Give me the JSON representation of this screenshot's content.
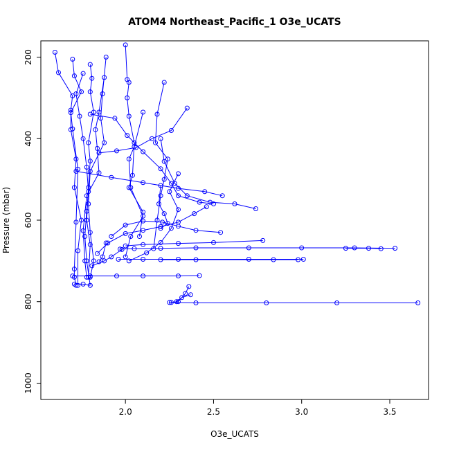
{
  "chart_data": {
    "type": "scatter",
    "title": "ATOM4 Northeast_Pacific_1 O3e_UCATS",
    "xlabel": "O3e_UCATS",
    "ylabel": "Pressure (mbar)",
    "xlim": [
      1.52,
      3.72
    ],
    "ylim": [
      1040,
      160
    ],
    "y_reversed": true,
    "x_ticks": [
      2.0,
      2.5,
      3.0,
      3.5
    ],
    "x_tick_labels": [
      "2.0",
      "2.5",
      "3.0",
      "3.5"
    ],
    "y_ticks": [
      200,
      400,
      600,
      800,
      1000
    ],
    "y_tick_labels": [
      "200",
      "400",
      "600",
      "800",
      "1000"
    ],
    "grid": false,
    "legend": "none",
    "colors": {
      "series": "#0000ff",
      "axes": "#000000"
    },
    "series": [
      {
        "points": [
          [
            1.6,
            188
          ],
          [
            1.62,
            238
          ],
          [
            1.7,
            295
          ],
          [
            1.69,
            330
          ],
          [
            1.69,
            378
          ],
          [
            1.72,
            450
          ],
          [
            1.71,
            520
          ],
          [
            1.75,
            600
          ],
          [
            1.73,
            675
          ],
          [
            1.73,
            760
          ]
        ]
      },
      {
        "points": [
          [
            1.7,
            205
          ],
          [
            1.71,
            246
          ],
          [
            1.75,
            285
          ],
          [
            1.69,
            336
          ],
          [
            1.7,
            376
          ],
          [
            1.73,
            475
          ],
          [
            1.72,
            605
          ],
          [
            1.71,
            720
          ],
          [
            1.71,
            740
          ],
          [
            1.72,
            760
          ]
        ]
      },
      {
        "points": [
          [
            1.76,
            240
          ],
          [
            1.72,
            290
          ],
          [
            1.74,
            345
          ],
          [
            1.76,
            400
          ],
          [
            1.78,
            470
          ],
          [
            1.79,
            530
          ],
          [
            1.78,
            578
          ],
          [
            1.77,
            640
          ],
          [
            1.78,
            700
          ],
          [
            1.8,
            760
          ]
        ]
      },
      {
        "points": [
          [
            1.8,
            218
          ],
          [
            1.81,
            252
          ],
          [
            1.8,
            285
          ],
          [
            1.82,
            335
          ],
          [
            1.79,
            410
          ],
          [
            1.8,
            455
          ],
          [
            1.79,
            520
          ],
          [
            1.78,
            600
          ],
          [
            1.8,
            660
          ],
          [
            1.79,
            740
          ]
        ]
      },
      {
        "points": [
          [
            1.88,
            250
          ],
          [
            1.85,
            335
          ],
          [
            1.83,
            378
          ],
          [
            1.84,
            424
          ],
          [
            1.85,
            484
          ],
          [
            1.78,
            540
          ],
          [
            1.76,
            626
          ],
          [
            1.77,
            700
          ],
          [
            1.78,
            740
          ]
        ]
      },
      {
        "points": [
          [
            1.89,
            200
          ],
          [
            1.87,
            290
          ],
          [
            1.86,
            350
          ],
          [
            1.88,
            410
          ],
          [
            1.8,
            480
          ],
          [
            1.79,
            560
          ],
          [
            1.8,
            630
          ],
          [
            1.82,
            700
          ],
          [
            1.8,
            740
          ]
        ]
      },
      {
        "points": [
          [
            2.0,
            170
          ],
          [
            2.01,
            255
          ],
          [
            2.02,
            262
          ],
          [
            2.01,
            300
          ],
          [
            2.02,
            345
          ],
          [
            2.05,
            410
          ],
          [
            2.04,
            490
          ],
          [
            2.02,
            520
          ],
          [
            2.1,
            580
          ],
          [
            2.08,
            640
          ]
        ]
      },
      {
        "points": [
          [
            2.22,
            262
          ],
          [
            2.18,
            340
          ],
          [
            2.17,
            410
          ],
          [
            2.24,
            450
          ],
          [
            2.22,
            500
          ],
          [
            2.2,
            540
          ],
          [
            2.18,
            600
          ],
          [
            2.16,
            670
          ]
        ]
      },
      {
        "points": [
          [
            2.35,
            325
          ],
          [
            2.26,
            380
          ],
          [
            2.15,
            400
          ],
          [
            2.06,
            422
          ],
          [
            1.95,
            430
          ],
          [
            1.85,
            435
          ]
        ]
      },
      {
        "points": [
          [
            2.1,
            335
          ],
          [
            2.05,
            420
          ],
          [
            2.02,
            450
          ],
          [
            2.03,
            520
          ],
          [
            2.1,
            590
          ],
          [
            2.03,
            640
          ],
          [
            2.0,
            690
          ]
        ]
      },
      {
        "points": [
          [
            1.8,
            340
          ],
          [
            1.94,
            350
          ],
          [
            2.01,
            392
          ],
          [
            2.1,
            432
          ],
          [
            2.2,
            474
          ],
          [
            2.26,
            510
          ],
          [
            2.3,
            540
          ],
          [
            2.42,
            556
          ],
          [
            2.5,
            560
          ]
        ]
      },
      {
        "points": [
          [
            2.74,
            572
          ],
          [
            2.62,
            560
          ],
          [
            2.48,
            556
          ],
          [
            2.35,
            540
          ],
          [
            2.28,
            510
          ],
          [
            2.22,
            456
          ],
          [
            2.2,
            400
          ]
        ]
      },
      {
        "points": [
          [
            1.72,
            480
          ],
          [
            1.92,
            495
          ],
          [
            2.1,
            508
          ],
          [
            2.3,
            522
          ],
          [
            2.45,
            530
          ],
          [
            2.55,
            540
          ]
        ]
      },
      {
        "points": [
          [
            2.46,
            567
          ],
          [
            2.39,
            584
          ],
          [
            2.3,
            605
          ],
          [
            2.2,
            616
          ],
          [
            2.1,
            625
          ],
          [
            2.0,
            633
          ],
          [
            1.9,
            656
          ],
          [
            1.84,
            682
          ]
        ]
      },
      {
        "points": [
          [
            2.54,
            630
          ],
          [
            2.4,
            625
          ],
          [
            2.3,
            615
          ],
          [
            2.21,
            605
          ],
          [
            2.1,
            602
          ],
          [
            2.0,
            612
          ],
          [
            1.92,
            640
          ]
        ]
      },
      {
        "points": [
          [
            2.78,
            650
          ],
          [
            2.5,
            655
          ],
          [
            2.3,
            657
          ],
          [
            2.1,
            660
          ],
          [
            2.0,
            663
          ]
        ]
      },
      {
        "points": [
          [
            2.3,
            486
          ],
          [
            2.25,
            530
          ],
          [
            2.3,
            574
          ],
          [
            2.26,
            620
          ],
          [
            2.2,
            655
          ],
          [
            2.12,
            680
          ],
          [
            2.02,
            700
          ]
        ]
      },
      {
        "points": [
          [
            1.89,
            656
          ],
          [
            1.87,
            690
          ],
          [
            1.85,
            702
          ]
        ]
      },
      {
        "points": [
          [
            3.53,
            669
          ],
          [
            3.3,
            668
          ],
          [
            3.0,
            668
          ],
          [
            2.7,
            668
          ],
          [
            2.4,
            668
          ],
          [
            2.2,
            669
          ],
          [
            2.05,
            670
          ],
          [
            1.97,
            671
          ]
        ]
      },
      {
        "points": [
          [
            3.45,
            670
          ],
          [
            3.38,
            669
          ],
          [
            3.25,
            669
          ]
        ]
      },
      {
        "points": [
          [
            1.96,
            696
          ],
          [
            2.1,
            696
          ],
          [
            2.3,
            696
          ],
          [
            2.7,
            696
          ],
          [
            3.01,
            696
          ]
        ]
      },
      {
        "points": [
          [
            2.98,
            697
          ],
          [
            2.84,
            697
          ],
          [
            2.4,
            697
          ],
          [
            2.2,
            697
          ]
        ]
      },
      {
        "points": [
          [
            1.7,
            737
          ],
          [
            1.8,
            737
          ],
          [
            1.95,
            737
          ],
          [
            2.1,
            737
          ],
          [
            2.3,
            737
          ],
          [
            2.42,
            736
          ]
        ]
      },
      {
        "points": [
          [
            1.71,
            757
          ],
          [
            1.76,
            757
          ],
          [
            1.8,
            760
          ]
        ]
      },
      {
        "points": [
          [
            2.36,
            763
          ],
          [
            2.34,
            780
          ],
          [
            2.3,
            800
          ],
          [
            2.25,
            802
          ]
        ]
      },
      {
        "points": [
          [
            2.26,
            802
          ],
          [
            2.4,
            803
          ],
          [
            2.8,
            803
          ],
          [
            3.2,
            803
          ],
          [
            3.66,
            803
          ]
        ]
      },
      {
        "points": [
          [
            2.29,
            800
          ],
          [
            2.32,
            790
          ],
          [
            2.37,
            783
          ]
        ]
      },
      {
        "points": [
          [
            1.81,
            712
          ],
          [
            1.88,
            700
          ],
          [
            1.92,
            690
          ],
          [
            1.98,
            672
          ]
        ]
      },
      {
        "points": [
          [
            2.2,
            515
          ],
          [
            2.19,
            560
          ],
          [
            2.22,
            584
          ],
          [
            2.24,
            608
          ],
          [
            2.2,
            620
          ]
        ]
      }
    ]
  }
}
